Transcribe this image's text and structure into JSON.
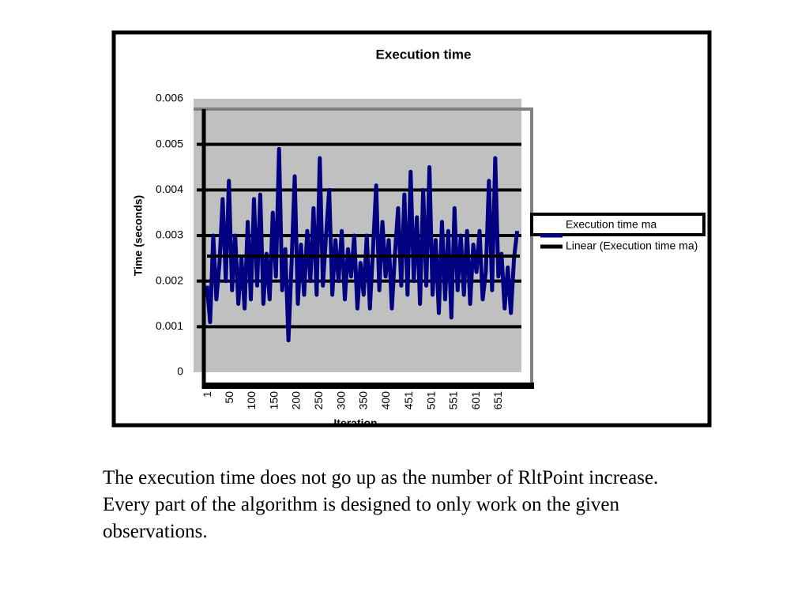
{
  "chart_data": {
    "type": "line",
    "title": "Execution time",
    "y_label": "Time (seconds)",
    "x_label": "Iteration",
    "ylim": [
      0,
      0.006
    ],
    "yticks": [
      0,
      0.001,
      0.002,
      0.003,
      0.004,
      0.005,
      0.006
    ],
    "xlim": [
      1,
      700
    ],
    "xticks": [
      1,
      50,
      100,
      150,
      200,
      250,
      300,
      350,
      400,
      451,
      501,
      551,
      601,
      651
    ],
    "grid": true,
    "legend": "right",
    "series": [
      {
        "name": "Execution time ma",
        "color": "#000080",
        "x": [
          1,
          8,
          15,
          22,
          29,
          36,
          43,
          50,
          57,
          64,
          71,
          78,
          85,
          92,
          99,
          106,
          113,
          120,
          127,
          134,
          141,
          148,
          155,
          162,
          169,
          176,
          183,
          190,
          197,
          204,
          211,
          218,
          225,
          232,
          239,
          246,
          253,
          260,
          267,
          274,
          281,
          288,
          295,
          302,
          309,
          316,
          323,
          330,
          337,
          344,
          351,
          358,
          365,
          372,
          379,
          386,
          393,
          400,
          407,
          414,
          421,
          428,
          435,
          442,
          449,
          456,
          463,
          470,
          477,
          484,
          491,
          498,
          505,
          512,
          519,
          526,
          533,
          540,
          547,
          554,
          561,
          568,
          575,
          582,
          589,
          596,
          603,
          610,
          617,
          624,
          631,
          638,
          645,
          652,
          659,
          666,
          673,
          680,
          687,
          694
        ],
        "values": [
          0.0019,
          0.0011,
          0.003,
          0.0016,
          0.0024,
          0.0038,
          0.002,
          0.0042,
          0.0018,
          0.003,
          0.0015,
          0.0025,
          0.0014,
          0.0033,
          0.0016,
          0.0038,
          0.0019,
          0.0039,
          0.0015,
          0.0026,
          0.0016,
          0.0035,
          0.0021,
          0.0049,
          0.0018,
          0.0027,
          0.0007,
          0.0024,
          0.0043,
          0.0015,
          0.0028,
          0.0017,
          0.0031,
          0.002,
          0.0036,
          0.0017,
          0.0047,
          0.0019,
          0.003,
          0.004,
          0.0017,
          0.0029,
          0.002,
          0.0031,
          0.0016,
          0.0027,
          0.0021,
          0.003,
          0.0014,
          0.0024,
          0.0017,
          0.003,
          0.0014,
          0.0027,
          0.0041,
          0.0018,
          0.0033,
          0.0021,
          0.0029,
          0.0014,
          0.0026,
          0.0036,
          0.0019,
          0.0039,
          0.0017,
          0.0044,
          0.002,
          0.0034,
          0.0015,
          0.004,
          0.0019,
          0.0045,
          0.0017,
          0.0029,
          0.0013,
          0.0033,
          0.0016,
          0.0031,
          0.0012,
          0.0036,
          0.0018,
          0.003,
          0.0017,
          0.0031,
          0.0015,
          0.0028,
          0.0022,
          0.0031,
          0.0016,
          0.0022,
          0.0042,
          0.0018,
          0.0047,
          0.0021,
          0.0026,
          0.0014,
          0.0023,
          0.0013,
          0.0025,
          0.0031
        ]
      },
      {
        "name": "Linear (Execution time ma)",
        "color": "#000000",
        "x": [
          1,
          700
        ],
        "values": [
          0.00255,
          0.00255
        ]
      }
    ]
  },
  "caption": [
    "The execution time does not go up as the number of RltPoint increase.",
    "Every part of the algorithm is designed to only work on the given",
    "observations."
  ]
}
